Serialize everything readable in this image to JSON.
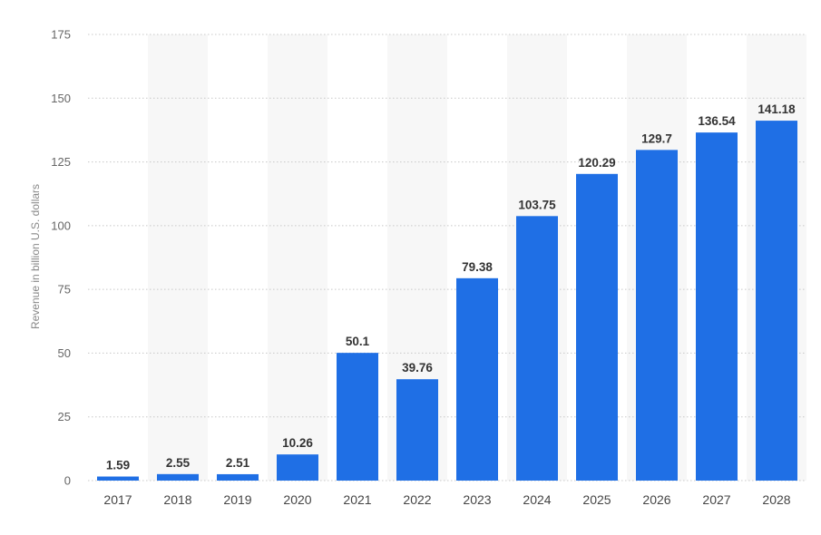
{
  "chart_data": {
    "type": "bar",
    "categories": [
      "2017",
      "2018",
      "2019",
      "2020",
      "2021",
      "2022",
      "2023",
      "2024",
      "2025",
      "2026",
      "2027",
      "2028"
    ],
    "series": [
      {
        "values": [
          1.59,
          2.55,
          2.51,
          10.26,
          50.1,
          39.76,
          79.38,
          103.75,
          120.29,
          129.7,
          136.54,
          141.18
        ],
        "value_labels": [
          "1.59",
          "2.55",
          "2.51",
          "10.26",
          "50.1",
          "39.76",
          "79.38",
          "103.75",
          "120.29",
          "129.7",
          "136.54",
          "141.18"
        ],
        "color": "#1f6fe5"
      }
    ],
    "title": "",
    "xlabel": "",
    "ylabel": "Revenue in billion U.S. dollars",
    "ylim": [
      0,
      175
    ],
    "yticks": [
      0,
      25,
      50,
      75,
      100,
      125,
      150,
      175
    ],
    "ytick_labels": [
      "0",
      "25",
      "50",
      "75",
      "100",
      "125",
      "150",
      "175"
    ],
    "grid": true,
    "legend": "none",
    "alternating_band_color": "#f7f7f7"
  }
}
